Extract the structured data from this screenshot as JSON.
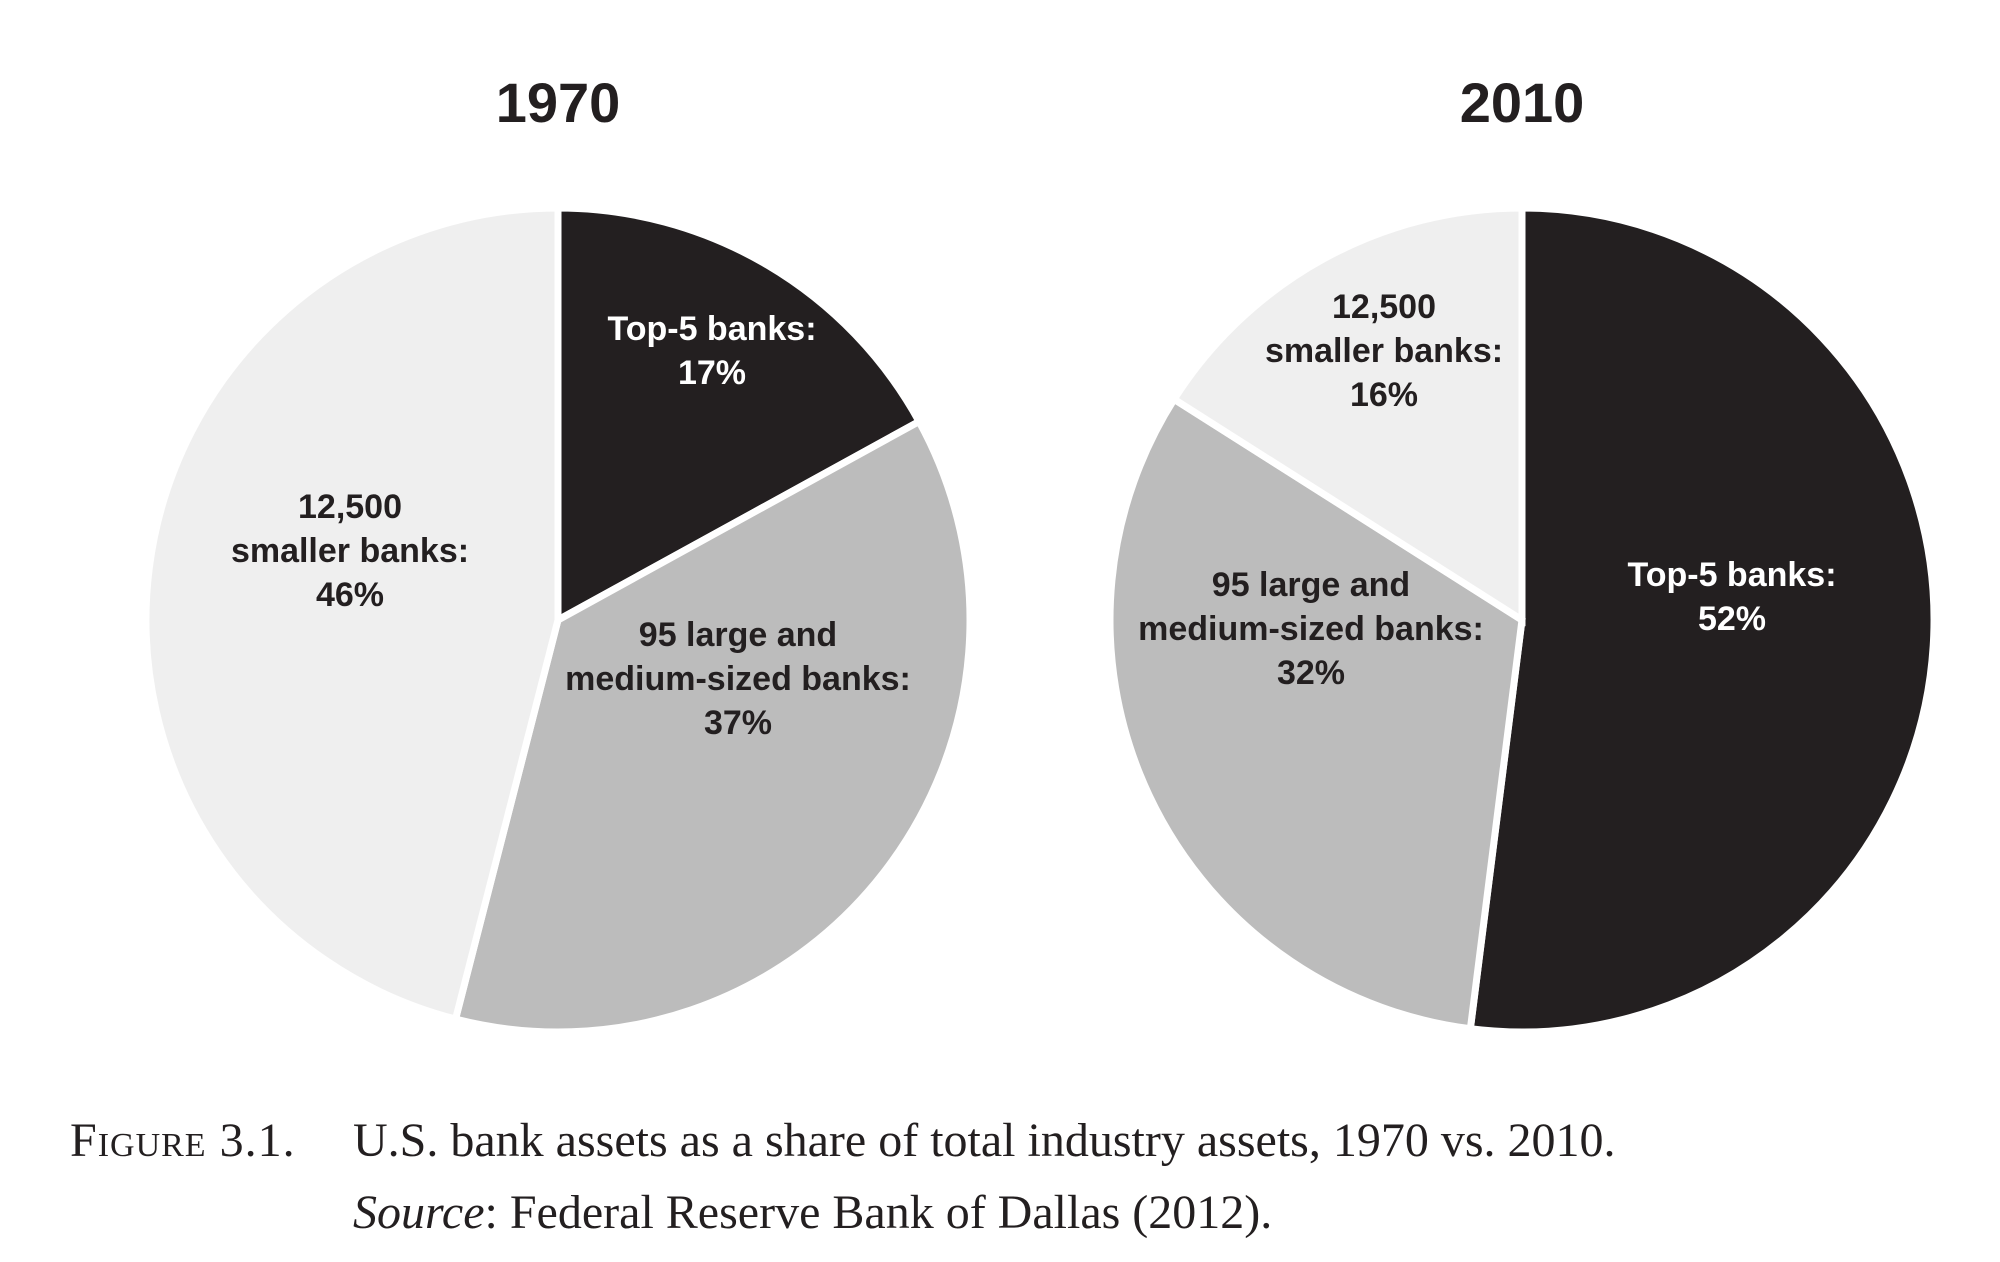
{
  "colors": {
    "top5": "#231f20",
    "large_medium": "#bcbcbc",
    "smaller": "#efefef",
    "dark_label": "#231f20",
    "light_label": "#ffffff",
    "separator": "#ffffff"
  },
  "chart_data": [
    {
      "type": "pie",
      "title": "1970",
      "slices": [
        {
          "key": "top5",
          "label_lines": [
            "Top-5 banks:",
            "17%"
          ],
          "value": 17
        },
        {
          "key": "large_medium",
          "label_lines": [
            "95 large and",
            "medium-sized banks:",
            "37%"
          ],
          "value": 37
        },
        {
          "key": "smaller",
          "label_lines": [
            "12,500",
            "smaller banks:",
            "46%"
          ],
          "value": 46
        }
      ]
    },
    {
      "type": "pie",
      "title": "2010",
      "slices": [
        {
          "key": "top5",
          "label_lines": [
            "Top-5 banks:",
            "52%"
          ],
          "value": 52
        },
        {
          "key": "large_medium",
          "label_lines": [
            "95 large and",
            "medium-sized banks:",
            "32%"
          ],
          "value": 32
        },
        {
          "key": "smaller",
          "label_lines": [
            "12,500",
            "smaller banks:",
            "16%"
          ],
          "value": 16
        }
      ]
    }
  ],
  "caption": {
    "label": "Figure 3.1.",
    "line1": "U.S. bank assets as a share of total industry assets, 1970 vs. 2010.",
    "source_word": "Source",
    "source_rest": ": Federal Reserve Bank of Dallas (2012)."
  }
}
